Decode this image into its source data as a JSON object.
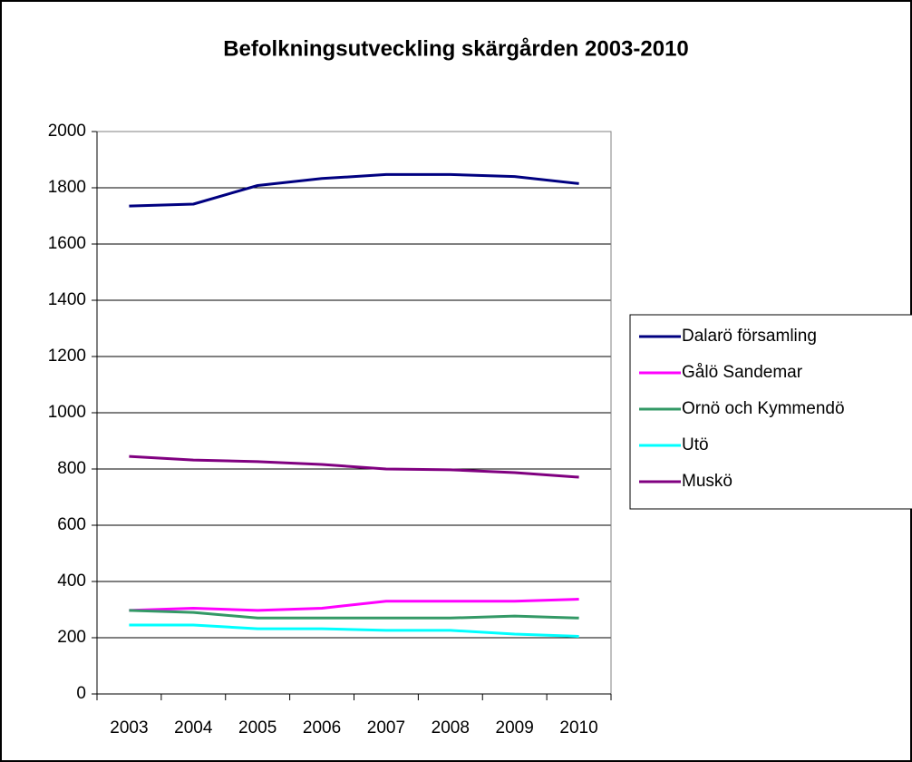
{
  "chart_data": {
    "type": "line",
    "title": "Befolkningsutveckling skärgården 2003-2010",
    "categories": [
      "2003",
      "2004",
      "2005",
      "2006",
      "2007",
      "2008",
      "2009",
      "2010"
    ],
    "series": [
      {
        "name": "Dalarö församling",
        "color": "#000080",
        "values": [
          1735,
          1742,
          1808,
          1833,
          1847,
          1847,
          1840,
          1815
        ]
      },
      {
        "name": "Gålö Sandemar",
        "color": "#ff00ff",
        "values": [
          297,
          305,
          297,
          305,
          330,
          330,
          330,
          337
        ]
      },
      {
        "name": "Ornö och Kymmendö",
        "color": "#339966",
        "values": [
          297,
          290,
          270,
          270,
          270,
          270,
          277,
          270
        ]
      },
      {
        "name": "Utö",
        "color": "#00ffff",
        "values": [
          245,
          245,
          232,
          232,
          226,
          226,
          213,
          205
        ]
      },
      {
        "name": "Muskö",
        "color": "#800080",
        "values": [
          845,
          832,
          826,
          816,
          800,
          797,
          787,
          771
        ]
      }
    ],
    "ylim": [
      0,
      2000
    ],
    "yticks": [
      0,
      200,
      400,
      600,
      800,
      1000,
      1200,
      1400,
      1600,
      1800,
      2000
    ],
    "grid": true,
    "legend": "right"
  }
}
